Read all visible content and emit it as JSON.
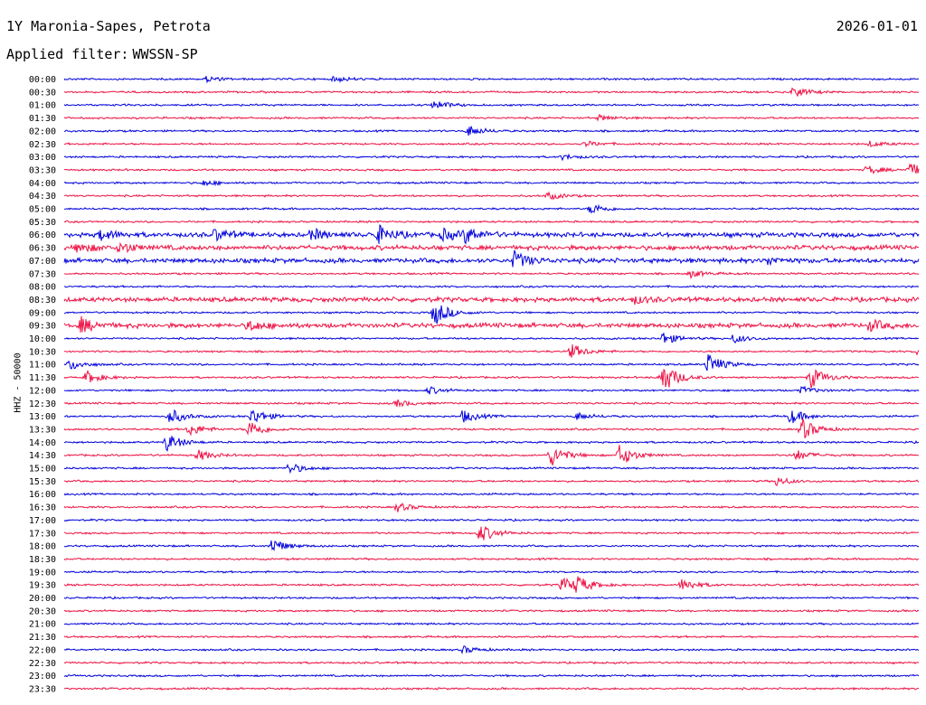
{
  "header": {
    "station": "1Y Maronia-Sapes, Petrota",
    "date": "2026-01-01",
    "filter_label": "Applied filter:",
    "filter_value": "WWSSN-SP"
  },
  "chart_data": {
    "type": "line",
    "title": "1Y Maronia-Sapes, Petrota",
    "ylabel": "HHZ - 50000",
    "colors": [
      "#0000dd",
      "#ee1144"
    ],
    "row_labels": [
      "00:00",
      "00:30",
      "01:00",
      "01:30",
      "02:00",
      "02:30",
      "03:00",
      "03:30",
      "04:00",
      "04:30",
      "05:00",
      "05:30",
      "06:00",
      "06:30",
      "07:00",
      "07:30",
      "08:00",
      "08:30",
      "09:00",
      "09:30",
      "10:00",
      "10:30",
      "11:00",
      "11:30",
      "12:00",
      "12:30",
      "13:00",
      "13:30",
      "14:00",
      "14:30",
      "15:00",
      "15:30",
      "16:00",
      "16:30",
      "17:00",
      "17:30",
      "18:00",
      "18:30",
      "19:00",
      "19:30",
      "20:00",
      "20:30",
      "21:00",
      "21:30",
      "22:00",
      "22:30",
      "23:00",
      "23:30"
    ],
    "x_minutes_per_row": 30,
    "events": [
      {
        "row": 0,
        "minute": 5.0,
        "amplitude": 3
      },
      {
        "row": 0,
        "minute": 9.5,
        "amplitude": 3
      },
      {
        "row": 1,
        "minute": 25.6,
        "amplitude": 6
      },
      {
        "row": 2,
        "minute": 13.0,
        "amplitude": 5
      },
      {
        "row": 3,
        "minute": 18.8,
        "amplitude": 3
      },
      {
        "row": 4,
        "minute": 14.2,
        "amplitude": 6
      },
      {
        "row": 5,
        "minute": 18.3,
        "amplitude": 3
      },
      {
        "row": 5,
        "minute": 28.3,
        "amplitude": 3
      },
      {
        "row": 6,
        "minute": 17.5,
        "amplitude": 3
      },
      {
        "row": 7,
        "minute": 28.2,
        "amplitude": 5
      },
      {
        "row": 7,
        "minute": 29.7,
        "amplitude": 7
      },
      {
        "row": 8,
        "minute": 4.9,
        "amplitude": 3
      },
      {
        "row": 9,
        "minute": 17.0,
        "amplitude": 4
      },
      {
        "row": 10,
        "minute": 18.5,
        "amplitude": 6
      },
      {
        "row": 12,
        "minute": 1.3,
        "amplitude": 6
      },
      {
        "row": 12,
        "minute": 5.3,
        "amplitude": 6
      },
      {
        "row": 12,
        "minute": 8.7,
        "amplitude": 6
      },
      {
        "row": 12,
        "minute": 11.0,
        "amplitude": 10
      },
      {
        "row": 12,
        "minute": 13.3,
        "amplitude": 6
      },
      {
        "row": 12,
        "minute": 14.1,
        "amplitude": 8
      },
      {
        "row": 13,
        "minute": 0.5,
        "amplitude": 6
      },
      {
        "row": 13,
        "minute": 2.0,
        "amplitude": 6
      },
      {
        "row": 14,
        "minute": 15.8,
        "amplitude": 10
      },
      {
        "row": 14,
        "minute": 24.7,
        "amplitude": 4
      },
      {
        "row": 15,
        "minute": 22.0,
        "amplitude": 4
      },
      {
        "row": 17,
        "minute": 20.0,
        "amplitude": 4
      },
      {
        "row": 18,
        "minute": 13.0,
        "amplitude": 14
      },
      {
        "row": 19,
        "minute": 0.6,
        "amplitude": 8
      },
      {
        "row": 19,
        "minute": 6.5,
        "amplitude": 6
      },
      {
        "row": 19,
        "minute": 28.3,
        "amplitude": 6
      },
      {
        "row": 20,
        "minute": 21.0,
        "amplitude": 7
      },
      {
        "row": 20,
        "minute": 23.5,
        "amplitude": 5
      },
      {
        "row": 21,
        "minute": 17.8,
        "amplitude": 8
      },
      {
        "row": 21,
        "minute": 30.0,
        "amplitude": 6
      },
      {
        "row": 22,
        "minute": 0.2,
        "amplitude": 6
      },
      {
        "row": 22,
        "minute": 22.6,
        "amplitude": 12
      },
      {
        "row": 23,
        "minute": 0.8,
        "amplitude": 7
      },
      {
        "row": 23,
        "minute": 21.0,
        "amplitude": 18
      },
      {
        "row": 23,
        "minute": 26.2,
        "amplitude": 12
      },
      {
        "row": 24,
        "minute": 12.8,
        "amplitude": 4
      },
      {
        "row": 24,
        "minute": 25.9,
        "amplitude": 4
      },
      {
        "row": 25,
        "minute": 11.7,
        "amplitude": 4
      },
      {
        "row": 26,
        "minute": 3.7,
        "amplitude": 9
      },
      {
        "row": 26,
        "minute": 6.6,
        "amplitude": 9
      },
      {
        "row": 26,
        "minute": 14.0,
        "amplitude": 7
      },
      {
        "row": 26,
        "minute": 18.0,
        "amplitude": 4
      },
      {
        "row": 26,
        "minute": 25.5,
        "amplitude": 8
      },
      {
        "row": 27,
        "minute": 4.4,
        "amplitude": 7
      },
      {
        "row": 27,
        "minute": 6.5,
        "amplitude": 10
      },
      {
        "row": 27,
        "minute": 25.9,
        "amplitude": 12
      },
      {
        "row": 28,
        "minute": 3.6,
        "amplitude": 10
      },
      {
        "row": 29,
        "minute": 4.7,
        "amplitude": 6
      },
      {
        "row": 29,
        "minute": 17.1,
        "amplitude": 12
      },
      {
        "row": 29,
        "minute": 19.5,
        "amplitude": 12
      },
      {
        "row": 29,
        "minute": 25.7,
        "amplitude": 6
      },
      {
        "row": 30,
        "minute": 7.9,
        "amplitude": 6
      },
      {
        "row": 31,
        "minute": 25.0,
        "amplitude": 5
      },
      {
        "row": 33,
        "minute": 11.7,
        "amplitude": 5
      },
      {
        "row": 35,
        "minute": 14.6,
        "amplitude": 10
      },
      {
        "row": 36,
        "minute": 7.3,
        "amplitude": 8
      },
      {
        "row": 39,
        "minute": 17.5,
        "amplitude": 8
      },
      {
        "row": 39,
        "minute": 18.0,
        "amplitude": 8
      },
      {
        "row": 39,
        "minute": 21.7,
        "amplitude": 7
      },
      {
        "row": 44,
        "minute": 14.0,
        "amplitude": 4
      }
    ],
    "noise_rows": [
      12,
      13,
      14,
      17,
      19
    ]
  }
}
